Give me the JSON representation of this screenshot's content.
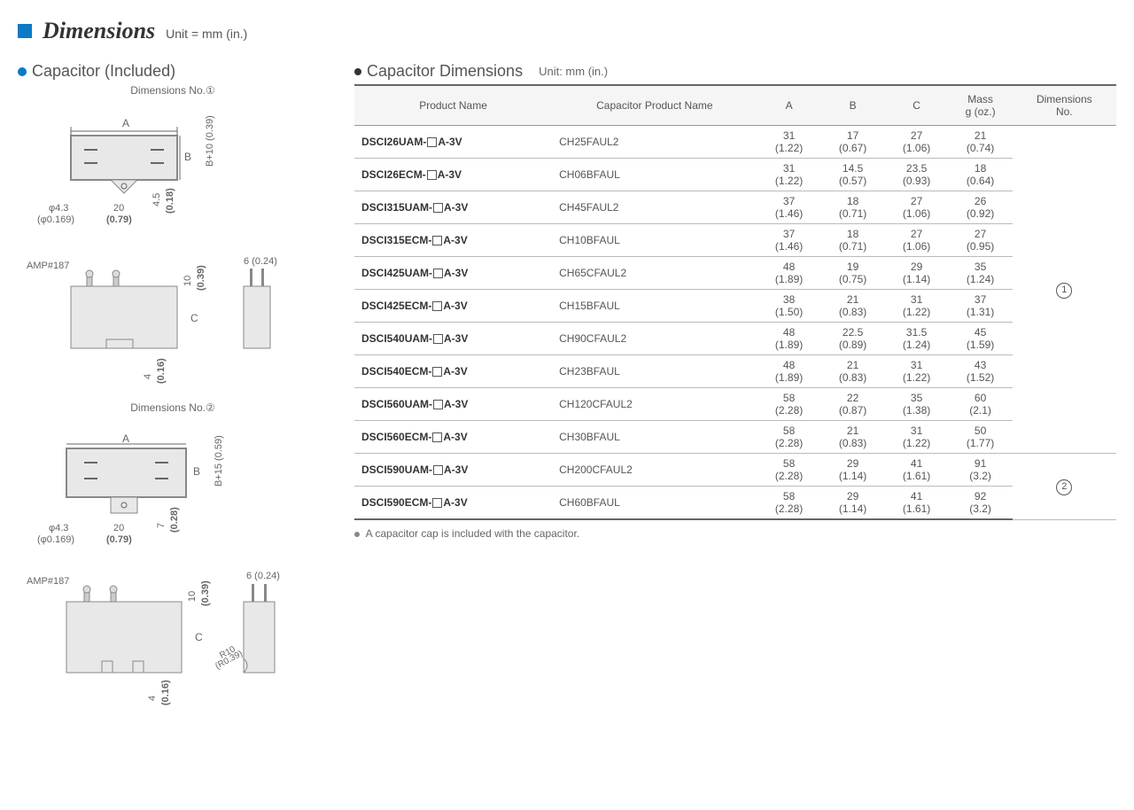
{
  "title": "Dimensions",
  "unit_label": "Unit = mm (in.)",
  "left_section": {
    "title": "Capacitor (Included)",
    "dim1_label": "Dimensions No.①",
    "dim2_label": "Dimensions No.②",
    "amp_label": "AMP#187",
    "labels": {
      "A": "A",
      "B": "B",
      "C": "C",
      "phi43": "φ4.3",
      "phi169": "(φ0.169)",
      "v20": "20",
      "v079": "(0.79)",
      "h45": "4.5",
      "h018": "(0.18)",
      "b10": "B+10 (0.39)",
      "v10": "10",
      "v039": "(0.39)",
      "v6": "6 (0.24)",
      "v4": "4",
      "v016": "(0.16)",
      "h7": "7",
      "h028": "(0.28)",
      "b15": "B+15 (0.59)",
      "r10": "R10",
      "r039": "(R0.39)"
    }
  },
  "right_section": {
    "title": "Capacitor Dimensions",
    "unit_label": "Unit: mm (in.)",
    "columns": [
      "Product Name",
      "Capacitor Product Name",
      "A",
      "B",
      "C",
      "Mass g (oz.)",
      "Dimensions No."
    ],
    "rows": [
      {
        "product": "DSCI26UAM-",
        "suffix": "A-3V",
        "cap": "CH25FAUL2",
        "A": "31",
        "Ai": "(1.22)",
        "B": "17",
        "Bi": "(0.67)",
        "C": "27",
        "Ci": "(1.06)",
        "M": "21",
        "Mi": "(0.74)"
      },
      {
        "product": "DSCI26ECM-",
        "suffix": "A-3V",
        "cap": "CH06BFAUL",
        "A": "31",
        "Ai": "(1.22)",
        "B": "14.5",
        "Bi": "(0.57)",
        "C": "23.5",
        "Ci": "(0.93)",
        "M": "18",
        "Mi": "(0.64)"
      },
      {
        "product": "DSCI315UAM-",
        "suffix": "A-3V",
        "cap": "CH45FAUL2",
        "A": "37",
        "Ai": "(1.46)",
        "B": "18",
        "Bi": "(0.71)",
        "C": "27",
        "Ci": "(1.06)",
        "M": "26",
        "Mi": "(0.92)"
      },
      {
        "product": "DSCI315ECM-",
        "suffix": "A-3V",
        "cap": "CH10BFAUL",
        "A": "37",
        "Ai": "(1.46)",
        "B": "18",
        "Bi": "(0.71)",
        "C": "27",
        "Ci": "(1.06)",
        "M": "27",
        "Mi": "(0.95)"
      },
      {
        "product": "DSCI425UAM-",
        "suffix": "A-3V",
        "cap": "CH65CFAUL2",
        "A": "48",
        "Ai": "(1.89)",
        "B": "19",
        "Bi": "(0.75)",
        "C": "29",
        "Ci": "(1.14)",
        "M": "35",
        "Mi": "(1.24)"
      },
      {
        "product": "DSCI425ECM-",
        "suffix": "A-3V",
        "cap": "CH15BFAUL",
        "A": "38",
        "Ai": "(1.50)",
        "B": "21",
        "Bi": "(0.83)",
        "C": "31",
        "Ci": "(1.22)",
        "M": "37",
        "Mi": "(1.31)"
      },
      {
        "product": "DSCI540UAM-",
        "suffix": "A-3V",
        "cap": "CH90CFAUL2",
        "A": "48",
        "Ai": "(1.89)",
        "B": "22.5",
        "Bi": "(0.89)",
        "C": "31.5",
        "Ci": "(1.24)",
        "M": "45",
        "Mi": "(1.59)"
      },
      {
        "product": "DSCI540ECM-",
        "suffix": "A-3V",
        "cap": "CH23BFAUL",
        "A": "48",
        "Ai": "(1.89)",
        "B": "21",
        "Bi": "(0.83)",
        "C": "31",
        "Ci": "(1.22)",
        "M": "43",
        "Mi": "(1.52)"
      },
      {
        "product": "DSCI560UAM-",
        "suffix": "A-3V",
        "cap": "CH120CFAUL2",
        "A": "58",
        "Ai": "(2.28)",
        "B": "22",
        "Bi": "(0.87)",
        "C": "35",
        "Ci": "(1.38)",
        "M": "60",
        "Mi": "(2.1)"
      },
      {
        "product": "DSCI560ECM-",
        "suffix": "A-3V",
        "cap": "CH30BFAUL",
        "A": "58",
        "Ai": "(2.28)",
        "B": "21",
        "Bi": "(0.83)",
        "C": "31",
        "Ci": "(1.22)",
        "M": "50",
        "Mi": "(1.77)"
      },
      {
        "product": "DSCI590UAM-",
        "suffix": "A-3V",
        "cap": "CH200CFAUL2",
        "A": "58",
        "Ai": "(2.28)",
        "B": "29",
        "Bi": "(1.14)",
        "C": "41",
        "Ci": "(1.61)",
        "M": "91",
        "Mi": "(3.2)"
      },
      {
        "product": "DSCI590ECM-",
        "suffix": "A-3V",
        "cap": "CH60BFAUL",
        "A": "58",
        "Ai": "(2.28)",
        "B": "29",
        "Bi": "(1.14)",
        "C": "41",
        "Ci": "(1.61)",
        "M": "92",
        "Mi": "(3.2)"
      }
    ],
    "dim_groups": [
      {
        "label": "①",
        "count": 10
      },
      {
        "label": "②",
        "count": 2
      }
    ],
    "note": "A capacitor cap is included with the capacitor."
  }
}
